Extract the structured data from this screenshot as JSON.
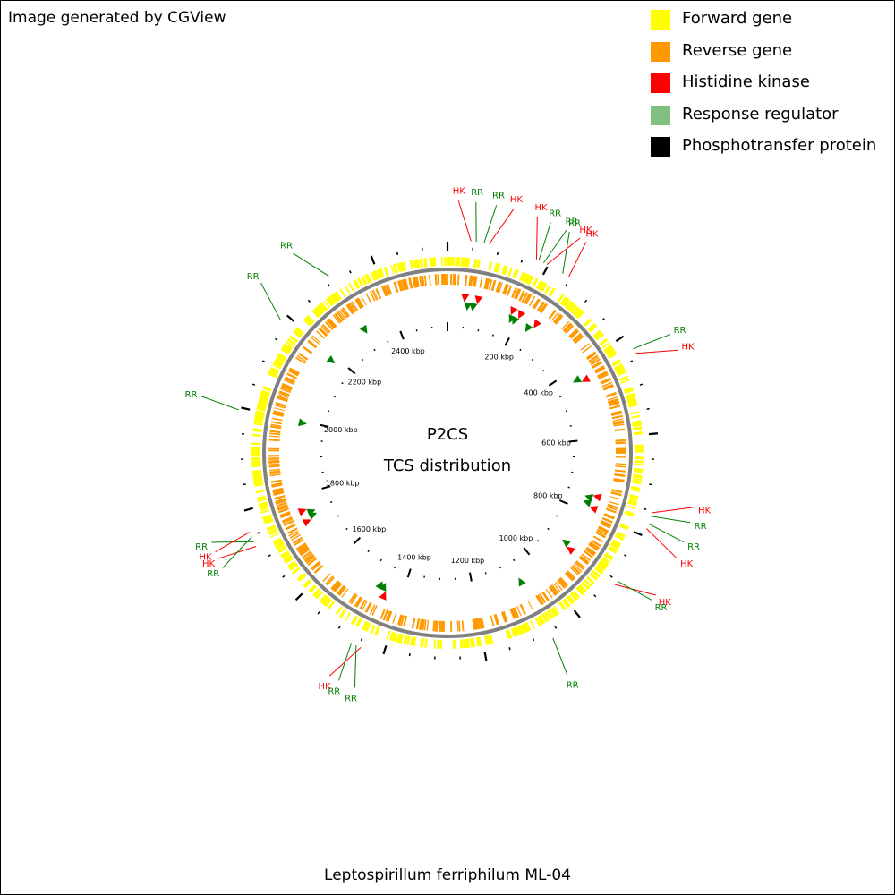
{
  "header_note": "Image generated by CGView",
  "footer_title": "Leptospirillum ferriphilum ML-04",
  "center_text": {
    "line1": "P2CS",
    "line2": "TCS distribution"
  },
  "legend": [
    {
      "label": "Forward gene",
      "color": "#ffff00"
    },
    {
      "label": "Reverse gene",
      "color": "#ff9900"
    },
    {
      "label": "Histidine kinase",
      "color": "#ff0000"
    },
    {
      "label": "Response regulator",
      "color": "#80c080"
    },
    {
      "label": "Phosphotransfer protein",
      "color": "#000000"
    }
  ],
  "colors": {
    "forward_gene": "#ffff00",
    "reverse_gene": "#ff9900",
    "backbone": "#808080",
    "hk": "#ff0000",
    "rr": "#008000",
    "tick": "#000000"
  },
  "genome": {
    "length_kbp": 2550,
    "scale_labels": [
      "2400 kbp",
      "200 kbp",
      "400 kbp",
      "600 kbp",
      "800 kbp",
      "1000 kbp",
      "1200 kbp",
      "1400 kbp",
      "1600 kbp",
      "1800 kbp",
      "2000 kbp",
      "2200 kbp"
    ],
    "scale_positions_kbp": [
      2400,
      200,
      400,
      600,
      800,
      1000,
      1200,
      1400,
      1600,
      1800,
      2000,
      2200
    ]
  },
  "features": [
    {
      "type": "HK",
      "kbp": 45
    },
    {
      "type": "RR",
      "kbp": 55
    },
    {
      "type": "RR",
      "kbp": 70
    },
    {
      "type": "HK",
      "kbp": 80
    },
    {
      "type": "HK",
      "kbp": 175
    },
    {
      "type": "RR",
      "kbp": 180
    },
    {
      "type": "RR",
      "kbp": 190
    },
    {
      "type": "HK",
      "kbp": 197
    },
    {
      "type": "RR",
      "kbp": 232
    },
    {
      "type": "HK",
      "kbp": 245
    },
    {
      "type": "RR",
      "kbp": 430
    },
    {
      "type": "HK",
      "kbp": 440
    },
    {
      "type": "HK",
      "kbp": 753
    },
    {
      "type": "RR",
      "kbp": 760
    },
    {
      "type": "RR",
      "kbp": 775
    },
    {
      "type": "HK",
      "kbp": 785
    },
    {
      "type": "HK",
      "kbp": 908
    },
    {
      "type": "RR",
      "kbp": 900
    },
    {
      "type": "RR",
      "kbp": 1065
    },
    {
      "type": "HK",
      "kbp": 1445
    },
    {
      "type": "RR",
      "kbp": 1455
    },
    {
      "type": "RR",
      "kbp": 1465
    },
    {
      "type": "HK",
      "kbp": 1728
    },
    {
      "type": "RR",
      "kbp": 1738
    },
    {
      "type": "RR",
      "kbp": 1748
    },
    {
      "type": "HK",
      "kbp": 1758
    },
    {
      "type": "RR",
      "kbp": 1995
    },
    {
      "type": "RR",
      "kbp": 2185
    },
    {
      "type": "RR",
      "kbp": 2310
    }
  ]
}
